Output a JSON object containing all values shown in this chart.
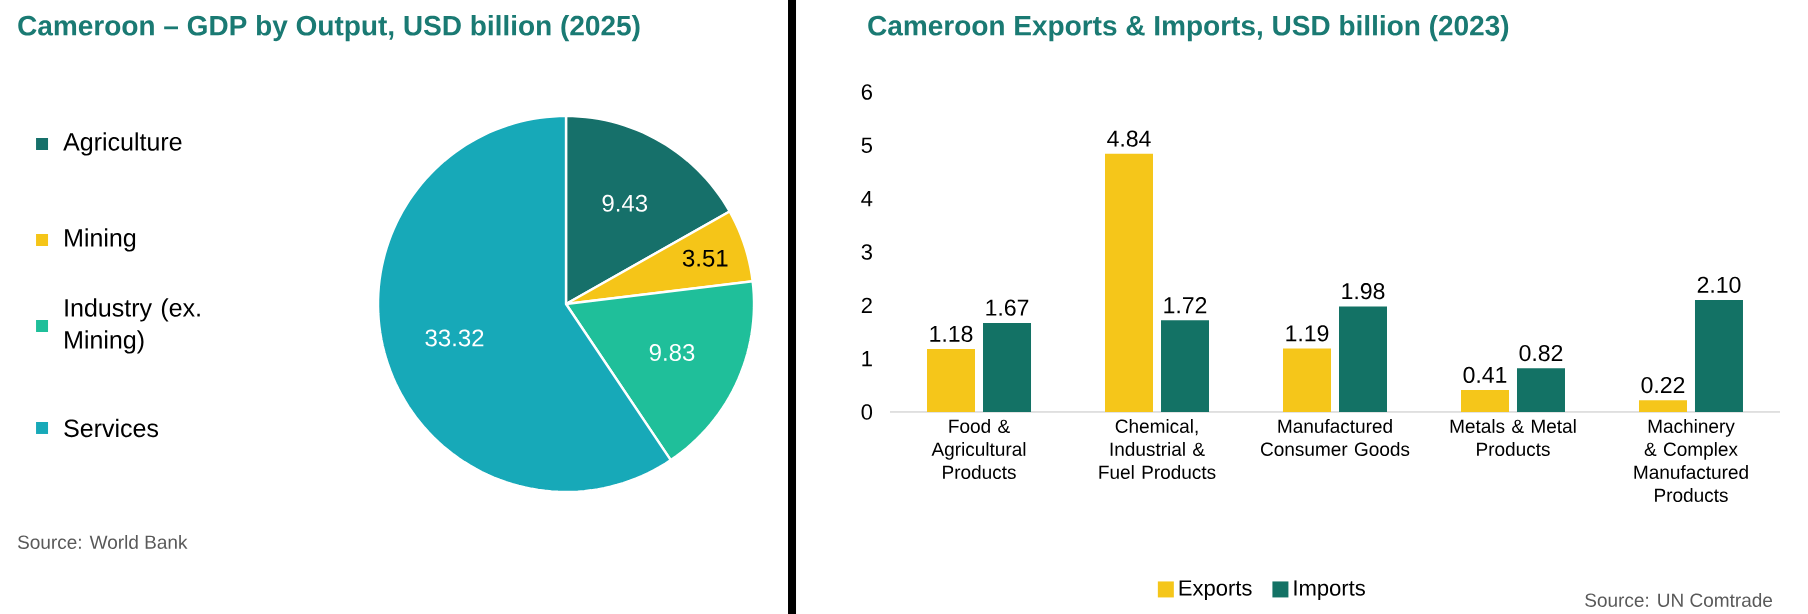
{
  "chart_data": [
    {
      "type": "pie",
      "title": "Cameroon – GDP by Output, USD billion (2025)",
      "categories": [
        "Agriculture",
        "Mining",
        "Industry (ex. Mining)",
        "Services"
      ],
      "values": [
        9.43,
        3.51,
        9.83,
        33.32
      ],
      "colors": [
        "#16706a",
        "#f5c518",
        "#1fbf9a",
        "#17a9b8"
      ],
      "data_labels": true,
      "legend": "left",
      "annotations": [
        "Source: World Bank"
      ]
    },
    {
      "type": "bar",
      "title": "Cameroon Exports & Imports, USD billion (2023)",
      "categories": [
        "Food & Agricultural Products",
        "Chemical, Industrial & Fuel Products",
        "Manufactured Consumer Goods",
        "Metals & Metal Products",
        "Machinery & Complex Manufactured Products"
      ],
      "ylim": [
        0,
        6
      ],
      "yticks": [
        0,
        1,
        2,
        3,
        4,
        5,
        6
      ],
      "legend": "bottom",
      "series": [
        {
          "name": "Exports",
          "color": "#f5c61a",
          "values": [
            1.18,
            4.84,
            1.19,
            0.41,
            0.22
          ],
          "value_labels": [
            "1.18",
            "4.84",
            "1.19",
            "0.41",
            "0.22"
          ]
        },
        {
          "name": "Imports",
          "color": "#137265",
          "values": [
            1.67,
            1.72,
            1.98,
            0.82,
            2.1
          ],
          "value_labels": [
            "1.67",
            "1.72",
            "1.98",
            "0.82",
            "2.10"
          ]
        }
      ],
      "annotations": [
        "Source: UN Comtrade"
      ]
    }
  ]
}
